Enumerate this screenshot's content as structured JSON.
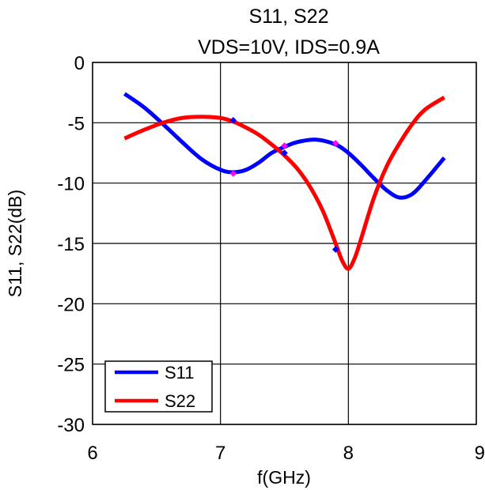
{
  "chart_data": {
    "type": "line",
    "title": "S11, S22",
    "subtitle": "VDS=10V, IDS=0.9A",
    "xlabel": "f(GHz)",
    "ylabel": "S11, S22(dB)",
    "xlim": [
      6,
      9
    ],
    "ylim": [
      -30,
      0
    ],
    "xticks": [
      6,
      7,
      8,
      9
    ],
    "yticks": [
      0,
      -5,
      -10,
      -15,
      -20,
      -25,
      -30
    ],
    "grid": true,
    "legend_position": "bottom-left",
    "series": [
      {
        "name": "S11",
        "color": "#0000ff",
        "marker_color": "#0000ff",
        "x": [
          6.25,
          6.4,
          6.55,
          6.7,
          6.85,
          7.0,
          7.1,
          7.2,
          7.3,
          7.4,
          7.5,
          7.6,
          7.75,
          7.9,
          8.0,
          8.1,
          8.2,
          8.3,
          8.4,
          8.5,
          8.6,
          8.75
        ],
        "y": [
          -2.6,
          -3.7,
          -5.1,
          -6.6,
          -8.0,
          -8.9,
          -9.1,
          -8.9,
          -8.3,
          -7.5,
          -7.0,
          -6.6,
          -6.4,
          -6.8,
          -7.5,
          -8.5,
          -9.6,
          -10.6,
          -11.2,
          -10.9,
          -9.8,
          -7.9
        ],
        "markers": [
          {
            "x": 7.1,
            "y": -4.8
          },
          {
            "x": 7.5,
            "y": -7.5
          },
          {
            "x": 7.9,
            "y": -15.5
          }
        ]
      },
      {
        "name": "S22",
        "color": "#ff0000",
        "marker_color": "#ff00ff",
        "x": [
          6.25,
          6.4,
          6.55,
          6.7,
          6.85,
          7.0,
          7.1,
          7.2,
          7.3,
          7.4,
          7.5,
          7.6,
          7.7,
          7.8,
          7.9,
          7.95,
          8.0,
          8.05,
          8.1,
          8.2,
          8.3,
          8.4,
          8.5,
          8.6,
          8.75
        ],
        "y": [
          -6.3,
          -5.6,
          -5.0,
          -4.6,
          -4.5,
          -4.6,
          -4.9,
          -5.4,
          -6.0,
          -6.8,
          -7.7,
          -8.8,
          -10.3,
          -12.3,
          -15.0,
          -16.4,
          -17.1,
          -16.2,
          -14.6,
          -11.2,
          -8.6,
          -6.7,
          -5.1,
          -3.9,
          -2.9
        ],
        "markers": [
          {
            "x": 7.1,
            "y": -9.2
          },
          {
            "x": 7.5,
            "y": -6.9
          },
          {
            "x": 7.9,
            "y": -6.7
          }
        ]
      }
    ]
  }
}
